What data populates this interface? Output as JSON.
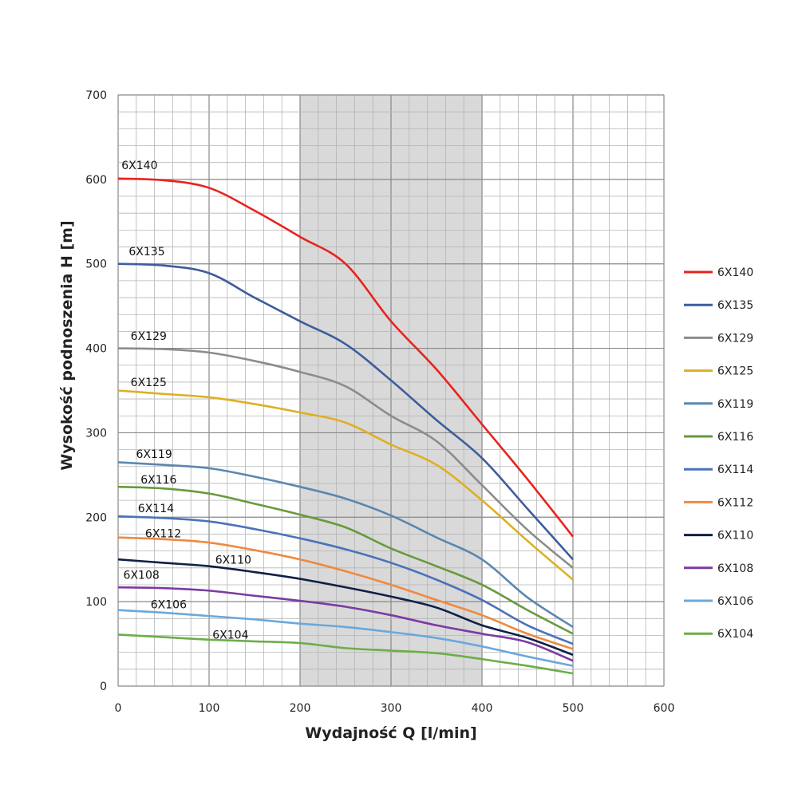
{
  "chart_data": {
    "type": "line",
    "title": "",
    "xlabel": "Wydajność Q [l/min]",
    "ylabel": "Wysokość podnoszenia H [m]",
    "xlim": [
      0,
      600
    ],
    "ylim": [
      0,
      700
    ],
    "xticks": [
      0,
      100,
      200,
      300,
      400,
      500,
      600
    ],
    "yticks": [
      0,
      100,
      200,
      300,
      400,
      500,
      600,
      700
    ],
    "grid": true,
    "minor_grid_step": {
      "x": 20,
      "y": 20
    },
    "shaded_range_x": [
      200,
      400
    ],
    "shaded_color": "#d9d9d9",
    "legend_position": "right",
    "x": [
      0,
      50,
      100,
      150,
      200,
      250,
      300,
      350,
      400,
      450,
      500
    ],
    "series": [
      {
        "name": "6X140",
        "color": "#e8231f",
        "values": [
          601,
          599,
          590,
          563,
          532,
          500,
          432,
          375,
          310,
          245,
          177
        ]
      },
      {
        "name": "6X135",
        "color": "#3d5d9c",
        "values": [
          500,
          498,
          489,
          460,
          432,
          405,
          362,
          315,
          270,
          210,
          150
        ]
      },
      {
        "name": "6X129",
        "color": "#8c8c8c",
        "values": [
          400,
          399,
          395,
          385,
          372,
          355,
          320,
          290,
          238,
          185,
          140
        ]
      },
      {
        "name": "6X125",
        "color": "#ddb022",
        "values": [
          350,
          346,
          342,
          334,
          324,
          312,
          286,
          262,
          220,
          172,
          126
        ]
      },
      {
        "name": "6X119",
        "color": "#5b87b0",
        "values": [
          265,
          262,
          258,
          248,
          236,
          222,
          202,
          176,
          150,
          105,
          70
        ]
      },
      {
        "name": "6X116",
        "color": "#689a3c",
        "values": [
          236,
          234,
          228,
          216,
          203,
          188,
          163,
          142,
          120,
          90,
          62
        ]
      },
      {
        "name": "6X114",
        "color": "#4a72b8",
        "values": [
          201,
          199,
          195,
          186,
          175,
          162,
          146,
          126,
          102,
          72,
          50
        ]
      },
      {
        "name": "6X112",
        "color": "#ee8a42",
        "values": [
          176,
          174,
          170,
          161,
          150,
          136,
          120,
          102,
          84,
          62,
          44
        ]
      },
      {
        "name": "6X110",
        "color": "#0f1f46",
        "values": [
          150,
          146,
          142,
          135,
          127,
          117,
          106,
          93,
          72,
          57,
          37
        ]
      },
      {
        "name": "6X108",
        "color": "#7b3ba2",
        "values": [
          117,
          116,
          113,
          107,
          101,
          94,
          84,
          72,
          62,
          52,
          30
        ]
      },
      {
        "name": "6X106",
        "color": "#6aa8dc",
        "values": [
          90,
          87,
          83,
          79,
          74,
          70,
          64,
          57,
          47,
          35,
          24
        ]
      },
      {
        "name": "6X104",
        "color": "#6cae4a",
        "values": [
          61,
          58,
          55,
          53,
          51,
          45,
          42,
          39,
          32,
          24,
          15
        ]
      }
    ]
  }
}
